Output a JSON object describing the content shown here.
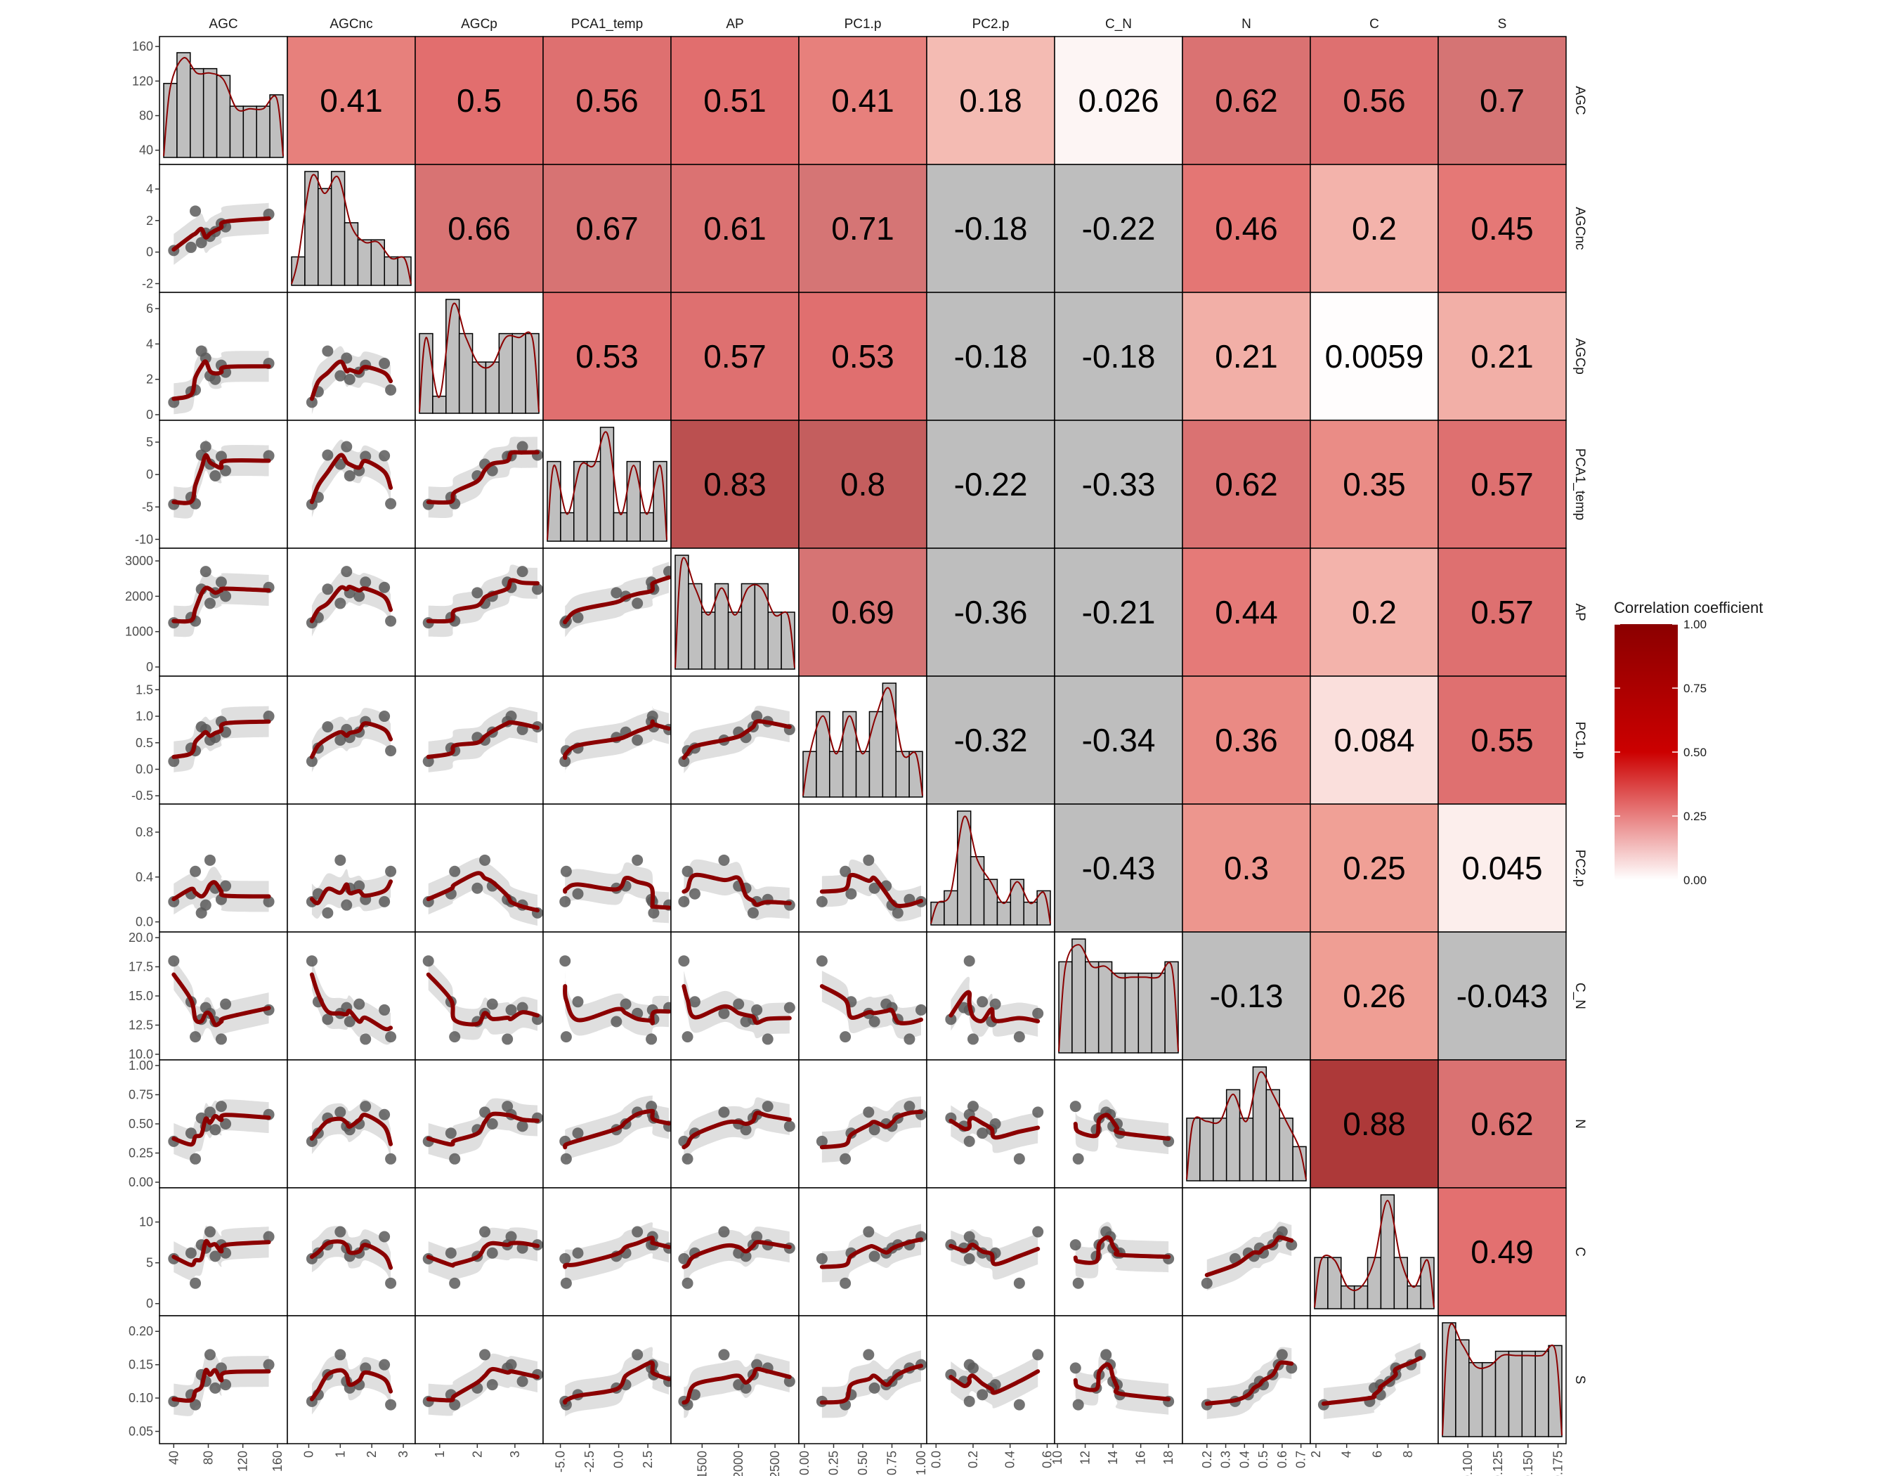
{
  "chart_data": {
    "type": "correlation-matrix",
    "variables": [
      "AGC",
      "AGCnc",
      "AGCp",
      "PCA1_temp",
      "AP",
      "PC1.p",
      "PC2.p",
      "C_N",
      "N",
      "C",
      "S"
    ],
    "correlations": [
      [
        null,
        "0.41",
        "0.5",
        "0.56",
        "0.51",
        "0.41",
        "0.18",
        "0.026",
        "0.62",
        "0.56",
        "0.7"
      ],
      [
        null,
        null,
        "0.66",
        "0.67",
        "0.61",
        "0.71",
        "-0.18",
        "-0.22",
        "0.46",
        "0.2",
        "0.45"
      ],
      [
        null,
        null,
        null,
        "0.53",
        "0.57",
        "0.53",
        "-0.18",
        "-0.18",
        "0.21",
        "0.0059",
        "0.21"
      ],
      [
        null,
        null,
        null,
        null,
        "0.83",
        "0.8",
        "-0.22",
        "-0.33",
        "0.62",
        "0.35",
        "0.57"
      ],
      [
        null,
        null,
        null,
        null,
        null,
        "0.69",
        "-0.36",
        "-0.21",
        "0.44",
        "0.2",
        "0.57"
      ],
      [
        null,
        null,
        null,
        null,
        null,
        null,
        "-0.32",
        "-0.34",
        "0.36",
        "0.084",
        "0.55"
      ],
      [
        null,
        null,
        null,
        null,
        null,
        null,
        null,
        "-0.43",
        "0.3",
        "0.25",
        "0.045"
      ],
      [
        null,
        null,
        null,
        null,
        null,
        null,
        null,
        null,
        "-0.13",
        "0.26",
        "-0.043"
      ],
      [
        null,
        null,
        null,
        null,
        null,
        null,
        null,
        null,
        null,
        "0.88",
        "0.62"
      ],
      [
        null,
        null,
        null,
        null,
        null,
        null,
        null,
        null,
        null,
        null,
        "0.49"
      ]
    ],
    "axes": {
      "AGC": {
        "range": [
          30,
          165
        ],
        "ticks": [
          {
            "v": 40,
            "l": "40"
          },
          {
            "v": 80,
            "l": "80"
          },
          {
            "v": 120,
            "l": "120"
          },
          {
            "v": 160,
            "l": "160"
          }
        ]
      },
      "AGCnc": {
        "range": [
          -2.2,
          5.2
        ],
        "ticks": [
          {
            "v": -2,
            "l": "-2"
          },
          {
            "v": 0,
            "l": "0"
          },
          {
            "v": 2,
            "l": "2"
          },
          {
            "v": 4,
            "l": "4"
          }
        ]
      },
      "AGCp": {
        "range": [
          0,
          6.6
        ],
        "ticks": [
          {
            "v": 0,
            "l": "0"
          },
          {
            "v": 2,
            "l": "2"
          },
          {
            "v": 4,
            "l": "4"
          },
          {
            "v": 6,
            "l": "6"
          }
        ]
      },
      "PCA1_temp": {
        "range": [
          -10.5,
          7.5
        ],
        "ticks": [
          {
            "v": -10,
            "l": "-10"
          },
          {
            "v": -5,
            "l": "-5"
          },
          {
            "v": 0,
            "l": "0"
          },
          {
            "v": 5,
            "l": "5"
          }
        ]
      },
      "AP": {
        "range": [
          -100,
          3200
        ],
        "ticks": [
          {
            "v": 0,
            "l": "0"
          },
          {
            "v": 1000,
            "l": "1000"
          },
          {
            "v": 2000,
            "l": "2000"
          },
          {
            "v": 3000,
            "l": "3000"
          }
        ]
      },
      "PC1.p": {
        "range": [
          -0.55,
          1.65
        ],
        "ticks": [
          {
            "v": -0.5,
            "l": "-0.5"
          },
          {
            "v": 0,
            "l": "0.0"
          },
          {
            "v": 0.5,
            "l": "0.5"
          },
          {
            "v": 1,
            "l": "1.0"
          },
          {
            "v": 1.5,
            "l": "1.5"
          }
        ]
      },
      "PC2.p": {
        "range": [
          -0.04,
          1.0
        ],
        "ticks": [
          {
            "v": 0,
            "l": "0.0"
          },
          {
            "v": 0.4,
            "l": "0.4"
          },
          {
            "v": 0.8,
            "l": "0.8"
          }
        ]
      },
      "C_N": {
        "range": [
          10,
          20
        ],
        "ticks": [
          {
            "v": 10,
            "l": "10.0"
          },
          {
            "v": 12.5,
            "l": "12.5"
          },
          {
            "v": 15,
            "l": "15.0"
          },
          {
            "v": 17.5,
            "l": "17.5"
          },
          {
            "v": 20,
            "l": "20.0"
          }
        ]
      },
      "N": {
        "range": [
          0,
          1.0
        ],
        "ticks": [
          {
            "v": 0,
            "l": "0.00"
          },
          {
            "v": 0.25,
            "l": "0.25"
          },
          {
            "v": 0.5,
            "l": "0.50"
          },
          {
            "v": 0.75,
            "l": "0.75"
          },
          {
            "v": 1,
            "l": "1.00"
          }
        ]
      },
      "C": {
        "range": [
          -0.8,
          13.5
        ],
        "ticks": [
          {
            "v": 0,
            "l": "0"
          },
          {
            "v": 5,
            "l": "5"
          },
          {
            "v": 10,
            "l": "10"
          }
        ]
      },
      "S": {
        "range": [
          0.04,
          0.215
        ],
        "ticks": [
          {
            "v": 0.05,
            "l": "0.05"
          },
          {
            "v": 0.1,
            "l": "0.10"
          },
          {
            "v": 0.15,
            "l": "0.15"
          },
          {
            "v": 0.2,
            "l": "0.20"
          }
        ]
      }
    },
    "bottom_axes": {
      "AGC": {
        "range": [
          30,
          165
        ],
        "ticks": [
          {
            "v": 40,
            "l": "40"
          },
          {
            "v": 80,
            "l": "80"
          },
          {
            "v": 120,
            "l": "120"
          },
          {
            "v": 160,
            "l": "160"
          }
        ]
      },
      "AGCnc": {
        "range": [
          -0.5,
          3.2
        ],
        "ticks": [
          {
            "v": 0,
            "l": "0"
          },
          {
            "v": 1,
            "l": "1"
          },
          {
            "v": 2,
            "l": "2"
          },
          {
            "v": 3,
            "l": "3"
          }
        ]
      },
      "AGCp": {
        "range": [
          0.5,
          3.6
        ],
        "ticks": [
          {
            "v": 1,
            "l": "1"
          },
          {
            "v": 2,
            "l": "2"
          },
          {
            "v": 3,
            "l": "3"
          }
        ]
      },
      "PCA1_temp": {
        "range": [
          -6,
          4
        ],
        "ticks": [
          {
            "v": -5,
            "l": "-5.0"
          },
          {
            "v": -2.5,
            "l": "-2.5"
          },
          {
            "v": 0,
            "l": "0.0"
          },
          {
            "v": 2.5,
            "l": "2.5"
          }
        ]
      },
      "AP": {
        "range": [
          1150,
          2750
        ],
        "ticks": [
          {
            "v": 1500,
            "l": "1500"
          },
          {
            "v": 2000,
            "l": "2000"
          },
          {
            "v": 2500,
            "l": "2500"
          }
        ]
      },
      "PC1.p": {
        "range": [
          0,
          1.0
        ],
        "ticks": [
          {
            "v": 0,
            "l": "0.00"
          },
          {
            "v": 0.25,
            "l": "0.25"
          },
          {
            "v": 0.5,
            "l": "0.50"
          },
          {
            "v": 0.75,
            "l": "0.75"
          },
          {
            "v": 1,
            "l": "1.00"
          }
        ]
      },
      "PC2.p": {
        "range": [
          -0.02,
          0.61
        ],
        "ticks": [
          {
            "v": 0,
            "l": "0.0"
          },
          {
            "v": 0.2,
            "l": "0.2"
          },
          {
            "v": 0.4,
            "l": "0.4"
          },
          {
            "v": 0.6,
            "l": "0.6"
          }
        ]
      },
      "C_N": {
        "range": [
          10.2,
          18.6
        ],
        "ticks": [
          {
            "v": 10,
            "l": "10"
          },
          {
            "v": 12,
            "l": "12"
          },
          {
            "v": 14,
            "l": "14"
          },
          {
            "v": 16,
            "l": "16"
          },
          {
            "v": 18,
            "l": "18"
          }
        ]
      },
      "N": {
        "range": [
          0.1,
          0.72
        ],
        "ticks": [
          {
            "v": 0.2,
            "l": "0.2"
          },
          {
            "v": 0.3,
            "l": "0.3"
          },
          {
            "v": 0.4,
            "l": "0.4"
          },
          {
            "v": 0.5,
            "l": "0.5"
          },
          {
            "v": 0.6,
            "l": "0.6"
          },
          {
            "v": 0.7,
            "l": "0.7"
          }
        ]
      },
      "C": {
        "range": [
          2,
          9.6
        ],
        "ticks": [
          {
            "v": 2,
            "l": "2"
          },
          {
            "v": 4,
            "l": "4"
          },
          {
            "v": 6,
            "l": "6"
          },
          {
            "v": 8,
            "l": "8"
          }
        ]
      },
      "S": {
        "range": [
          0.08,
          0.177
        ],
        "ticks": [
          {
            "v": 0.1,
            "l": "0.100"
          },
          {
            "v": 0.125,
            "l": "0.125"
          },
          {
            "v": 0.15,
            "l": "0.150"
          },
          {
            "v": 0.175,
            "l": "0.175"
          }
        ]
      }
    },
    "points": {
      "AGC": [
        40,
        60,
        65,
        72,
        77,
        82,
        88,
        95,
        100,
        150
      ],
      "AGCnc": [
        0.1,
        0.3,
        2.6,
        0.6,
        1.2,
        1.0,
        1.3,
        1.8,
        1.6,
        2.4
      ],
      "AGCp": [
        0.7,
        1.3,
        1.4,
        3.6,
        3.2,
        2.2,
        2.0,
        2.8,
        2.4,
        2.9
      ],
      "PCA1_temp": [
        -4.6,
        -3.5,
        -4.5,
        3.0,
        4.3,
        1.6,
        -0.2,
        2.8,
        0.6,
        2.9
      ],
      "AP": [
        1250,
        1400,
        1300,
        2200,
        2700,
        1800,
        2100,
        2400,
        2000,
        2250
      ],
      "PC1.p": [
        0.15,
        0.4,
        0.35,
        0.8,
        0.75,
        0.55,
        0.6,
        0.9,
        0.7,
        1.0
      ],
      "PC2.p": [
        0.18,
        0.25,
        0.45,
        0.08,
        0.15,
        0.55,
        0.3,
        0.2,
        0.32,
        0.18
      ],
      "C_N": [
        18,
        14.5,
        11.5,
        13,
        14,
        13.5,
        12.8,
        11.3,
        14.3,
        13.8
      ],
      "N": [
        0.35,
        0.42,
        0.2,
        0.55,
        0.48,
        0.6,
        0.45,
        0.65,
        0.5,
        0.58
      ],
      "C": [
        5.5,
        6.2,
        2.5,
        7.2,
        6.8,
        8.8,
        5.8,
        7.2,
        6.2,
        8.2
      ],
      "S": [
        0.095,
        0.105,
        0.09,
        0.135,
        0.125,
        0.165,
        0.115,
        0.145,
        0.12,
        0.15
      ]
    },
    "histograms": {
      "AGC": [
        0.65,
        0.92,
        0.78,
        0.78,
        0.72,
        0.45,
        0.45,
        0.45,
        0.55
      ],
      "AGCnc": [
        0.25,
        1.0,
        0.85,
        1.0,
        0.55,
        0.4,
        0.4,
        0.25,
        0.25
      ],
      "AGCp": [
        0.7,
        0.15,
        1.0,
        0.7,
        0.45,
        0.45,
        0.7,
        0.7,
        0.7
      ],
      "PCA1_temp": [
        0.7,
        0.25,
        0.7,
        0.7,
        1.0,
        0.25,
        0.7,
        0.25,
        0.7
      ],
      "AP": [
        1.0,
        0.75,
        0.5,
        0.75,
        0.5,
        0.75,
        0.75,
        0.5,
        0.5
      ],
      "PC1.p": [
        0.4,
        0.75,
        0.4,
        0.75,
        0.4,
        0.75,
        1.0,
        0.4,
        0.4
      ],
      "PC2.p": [
        0.2,
        0.3,
        1.0,
        0.6,
        0.4,
        0.2,
        0.4,
        0.2,
        0.3
      ],
      "C_N": [
        0.8,
        1.0,
        0.8,
        0.8,
        0.7,
        0.7,
        0.7,
        0.7,
        0.8
      ],
      "N": [
        0.55,
        0.55,
        0.55,
        0.8,
        0.55,
        1.0,
        0.8,
        0.55,
        0.3
      ],
      "C": [
        0.45,
        0.45,
        0.2,
        0.2,
        0.45,
        1.0,
        0.45,
        0.2,
        0.45
      ],
      "S": [
        1.0,
        0.85,
        0.65,
        0.65,
        0.75,
        0.75,
        0.75,
        0.75,
        0.8
      ]
    },
    "legend": {
      "title": "Correlation coefficient",
      "ticks": [
        {
          "v": 1,
          "l": "1.00"
        },
        {
          "v": 0.75,
          "l": "0.75"
        },
        {
          "v": 0.5,
          "l": "0.50"
        },
        {
          "v": 0.25,
          "l": "0.25"
        },
        {
          "v": 0,
          "l": "0.00"
        }
      ]
    },
    "colors": {
      "positive_high": "#8b0000",
      "positive_mid": "#e06a6a",
      "zero": "#ffffff",
      "negative": "#bebebe",
      "smooth_line": "#8b0000",
      "ci_band": "#d9d9d9",
      "point": "#5a5a5a",
      "hist_fill": "#bfbfbf"
    }
  }
}
